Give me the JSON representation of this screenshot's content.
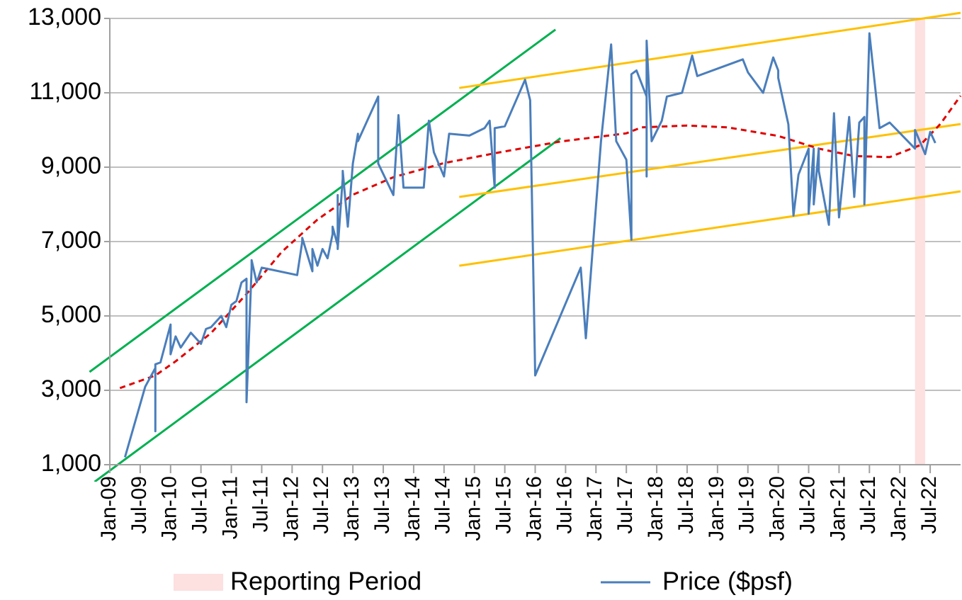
{
  "chart_data": {
    "type": "line",
    "xlim": [
      "Jan-09",
      "Jan-23"
    ],
    "xticks": [
      "Jan-09",
      "Jul-09",
      "Jan-10",
      "Jul-10",
      "Jan-11",
      "Jul-11",
      "Jan-12",
      "Jul-12",
      "Jan-13",
      "Jul-13",
      "Jan-14",
      "Jul-14",
      "Jan-15",
      "Jul-15",
      "Jan-16",
      "Jul-16",
      "Jan-17",
      "Jul-17",
      "Jan-18",
      "Jul-18",
      "Jan-19",
      "Jul-19",
      "Jan-20",
      "Jul-20",
      "Jan-21",
      "Jul-21",
      "Jan-22",
      "Jul-22"
    ],
    "ylim": [
      1000,
      13000
    ],
    "yticks": [
      {
        "value": 1000,
        "label": "1,000"
      },
      {
        "value": 3000,
        "label": "3,000"
      },
      {
        "value": 5000,
        "label": "5,000"
      },
      {
        "value": 7000,
        "label": "7,000"
      },
      {
        "value": 9000,
        "label": "9,000"
      },
      {
        "value": 11000,
        "label": "11,000"
      },
      {
        "value": 13000,
        "label": "13,000"
      }
    ],
    "grid": true,
    "reporting_period": {
      "name": "Reporting Period",
      "color": "#fde0e0",
      "x": [
        "Apr-22",
        "Jun-22"
      ]
    },
    "series": [
      {
        "name": "Price ($psf)",
        "color": "#4a7ebb",
        "x": [
          "Apr-09",
          "Aug-09",
          "Oct-09",
          "Oct-09",
          "Oct-09",
          "Nov-09",
          "Jan-10",
          "Jan-10",
          "Feb-10",
          "Mar-10",
          "Apr-10",
          "May-10",
          "Jul-10",
          "Aug-10",
          "Sep-10",
          "Nov-10",
          "Dec-10",
          "Jan-11",
          "Feb-11",
          "Mar-11",
          "Apr-11",
          "Apr-11",
          "May-11",
          "May-11",
          "Jun-11",
          "Jul-11",
          "Feb-12",
          "Mar-12",
          "Mar-12",
          "May-12",
          "May-12",
          "Jun-12",
          "Jul-12",
          "Aug-12",
          "Sep-12",
          "Sep-12",
          "Oct-12",
          "Oct-12",
          "Oct-12",
          "Nov-12",
          "Nov-12",
          "Dec-12",
          "Jan-13",
          "Feb-13",
          "Feb-13",
          "Jun-13",
          "Jun-13",
          "Sep-13",
          "Oct-13",
          "Nov-13",
          "Mar-14",
          "Apr-14",
          "May-14",
          "Jul-14",
          "Aug-14",
          "Dec-14",
          "Mar-15",
          "Apr-15",
          "May-15",
          "May-15",
          "Jul-15",
          "Nov-15",
          "Dec-15",
          "Jan-16",
          "Oct-16",
          "Nov-16",
          "Jan-17",
          "Feb-17",
          "Apr-17",
          "May-17",
          "Jul-17",
          "Aug-17",
          "Aug-17",
          "Sep-17",
          "Nov-17",
          "Nov-17",
          "Nov-17",
          "Dec-17",
          "Feb-18",
          "Mar-18",
          "Jun-18",
          "Aug-18",
          "Sep-18",
          "Jun-19",
          "Jul-19",
          "Oct-19",
          "Dec-19",
          "Jan-20",
          "Jan-20",
          "Mar-20",
          "Apr-20",
          "May-20",
          "Jul-20",
          "Jul-20",
          "Aug-20",
          "Aug-20",
          "Sep-20",
          "Sep-20",
          "Nov-20",
          "Dec-20",
          "Jan-21",
          "Mar-21",
          "Apr-21",
          "May-21",
          "Jun-21",
          "Jun-21",
          "Jul-21",
          "Sep-21",
          "Nov-21",
          "Apr-22",
          "Apr-22",
          "Jun-22",
          "Jul-22",
          "Aug-22"
        ],
        "values": [
          1200,
          3100,
          3600,
          1900,
          3700,
          3750,
          4770,
          3970,
          4450,
          4150,
          4350,
          4550,
          4250,
          4650,
          4700,
          5000,
          4700,
          5300,
          5400,
          5900,
          6000,
          2680,
          6300,
          6500,
          5900,
          6300,
          6100,
          7000,
          7100,
          6200,
          6800,
          6350,
          6800,
          6550,
          7200,
          7400,
          6900,
          8250,
          6800,
          8700,
          8900,
          7400,
          9100,
          9900,
          9700,
          10900,
          9100,
          8250,
          10400,
          8450,
          8450,
          10250,
          9400,
          8750,
          9900,
          9850,
          10050,
          10250,
          8450,
          10050,
          10100,
          11350,
          10800,
          3400,
          6300,
          4400,
          7950,
          9700,
          12300,
          9700,
          9200,
          7050,
          11500,
          11600,
          10900,
          8750,
          12400,
          9700,
          10250,
          10900,
          11000,
          12000,
          11450,
          11900,
          11550,
          11000,
          11950,
          11600,
          11400,
          10150,
          7700,
          8800,
          9500,
          7750,
          9500,
          8000,
          9500,
          8900,
          7450,
          10450,
          7650,
          10350,
          8200,
          10200,
          10350,
          8000,
          12600,
          10050,
          10200,
          9500,
          10000,
          9350,
          9950,
          9650
        ]
      }
    ],
    "trend_lines": [
      {
        "color": "#00b050",
        "x": [
          "Sep-08",
          "May-16"
        ],
        "values": [
          3495,
          12700
        ]
      },
      {
        "color": "#00b050",
        "x": [
          "Oct-08",
          "Jun-16"
        ],
        "values": [
          540,
          9780
        ]
      },
      {
        "color": "#ffc000",
        "x": [
          "Oct-14",
          "Jan-23"
        ],
        "values": [
          11130,
          13150
        ]
      },
      {
        "color": "#ffc000",
        "x": [
          "Oct-14",
          "Jan-23"
        ],
        "values": [
          8200,
          10160
        ]
      },
      {
        "color": "#ffc000",
        "x": [
          "Oct-14",
          "Jan-23"
        ],
        "values": [
          6350,
          8350
        ]
      },
      {
        "color": "#e00000",
        "dashed": true,
        "x": [
          "Mar-09",
          "Oct-09",
          "Feb-10",
          "Sep-10",
          "Apr-11",
          "Nov-11",
          "Jun-12",
          "Jan-13",
          "Sep-13",
          "Jul-14",
          "Jun-15",
          "Jun-16",
          "Jul-17",
          "Oct-17",
          "Jul-18",
          "Mar-19",
          "Jan-20",
          "Sep-20",
          "Apr-21",
          "Nov-21",
          "May-22",
          "Sep-22",
          "Jan-23"
        ],
        "values": [
          3060,
          3400,
          3780,
          4540,
          5590,
          6730,
          7590,
          8260,
          8730,
          9110,
          9400,
          9690,
          9910,
          10070,
          10120,
          10070,
          9840,
          9500,
          9300,
          9270,
          9590,
          10160,
          10920
        ]
      }
    ]
  }
}
